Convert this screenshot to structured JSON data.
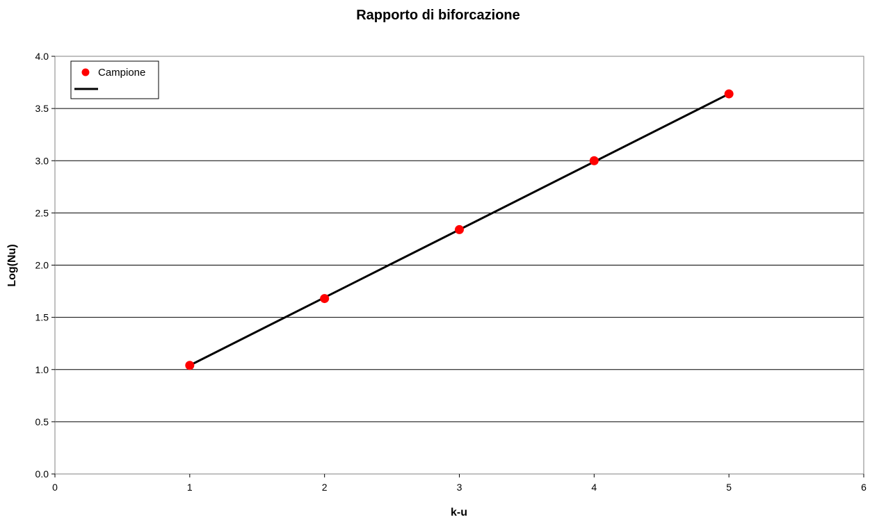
{
  "chart_data": {
    "type": "scatter",
    "title": "Rapporto di biforcazione",
    "xlabel": "k-u",
    "ylabel": "Log(Nu)",
    "xlim": [
      0,
      6
    ],
    "ylim": [
      0.0,
      4.0
    ],
    "x_ticks": [
      "0",
      "1",
      "2",
      "3",
      "4",
      "5",
      "6"
    ],
    "y_ticks": [
      "0.0",
      "0.5",
      "1.0",
      "1.5",
      "2.0",
      "2.5",
      "3.0",
      "3.5",
      "4.0"
    ],
    "grid": "horizontal",
    "legend_position": "top-left",
    "series": [
      {
        "name": "Campione",
        "kind": "scatter",
        "color": "#ff0000",
        "x": [
          1,
          2,
          3,
          4,
          5
        ],
        "y": [
          1.04,
          1.68,
          2.34,
          3.0,
          3.64
        ]
      },
      {
        "name": "",
        "kind": "line",
        "color": "#000000",
        "x": [
          1,
          5
        ],
        "y": [
          1.04,
          3.64
        ]
      }
    ]
  }
}
